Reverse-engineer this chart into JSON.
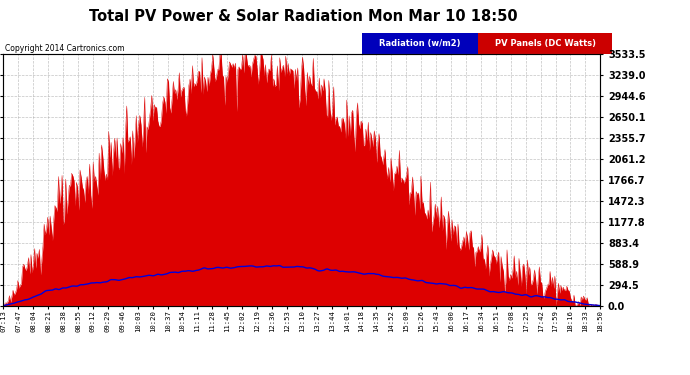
{
  "title": "Total PV Power & Solar Radiation Mon Mar 10 18:50",
  "copyright": "Copyright 2014 Cartronics.com",
  "legend_radiation": "Radiation (w/m2)",
  "legend_pv": "PV Panels (DC Watts)",
  "ymax": 3533.5,
  "yticks": [
    0.0,
    294.5,
    588.9,
    883.4,
    1177.8,
    1472.3,
    1766.7,
    2061.2,
    2355.7,
    2650.1,
    2944.6,
    3239.0,
    3533.5
  ],
  "background_color": "#ffffff",
  "plot_bg_color": "#ffffff",
  "grid_color": "#aaaaaa",
  "pv_fill_color": "#dd0000",
  "radiation_line_color": "#0000dd",
  "x_labels": [
    "07:13",
    "07:47",
    "08:04",
    "08:21",
    "08:38",
    "08:55",
    "09:12",
    "09:29",
    "09:46",
    "10:03",
    "10:20",
    "10:37",
    "10:54",
    "11:11",
    "11:28",
    "11:45",
    "12:02",
    "12:19",
    "12:36",
    "12:53",
    "13:10",
    "13:27",
    "13:44",
    "14:01",
    "14:18",
    "14:35",
    "14:52",
    "15:09",
    "15:26",
    "15:43",
    "16:00",
    "16:17",
    "16:34",
    "16:51",
    "17:08",
    "17:25",
    "17:42",
    "17:59",
    "18:16",
    "18:33",
    "18:50"
  ],
  "num_points": 500
}
